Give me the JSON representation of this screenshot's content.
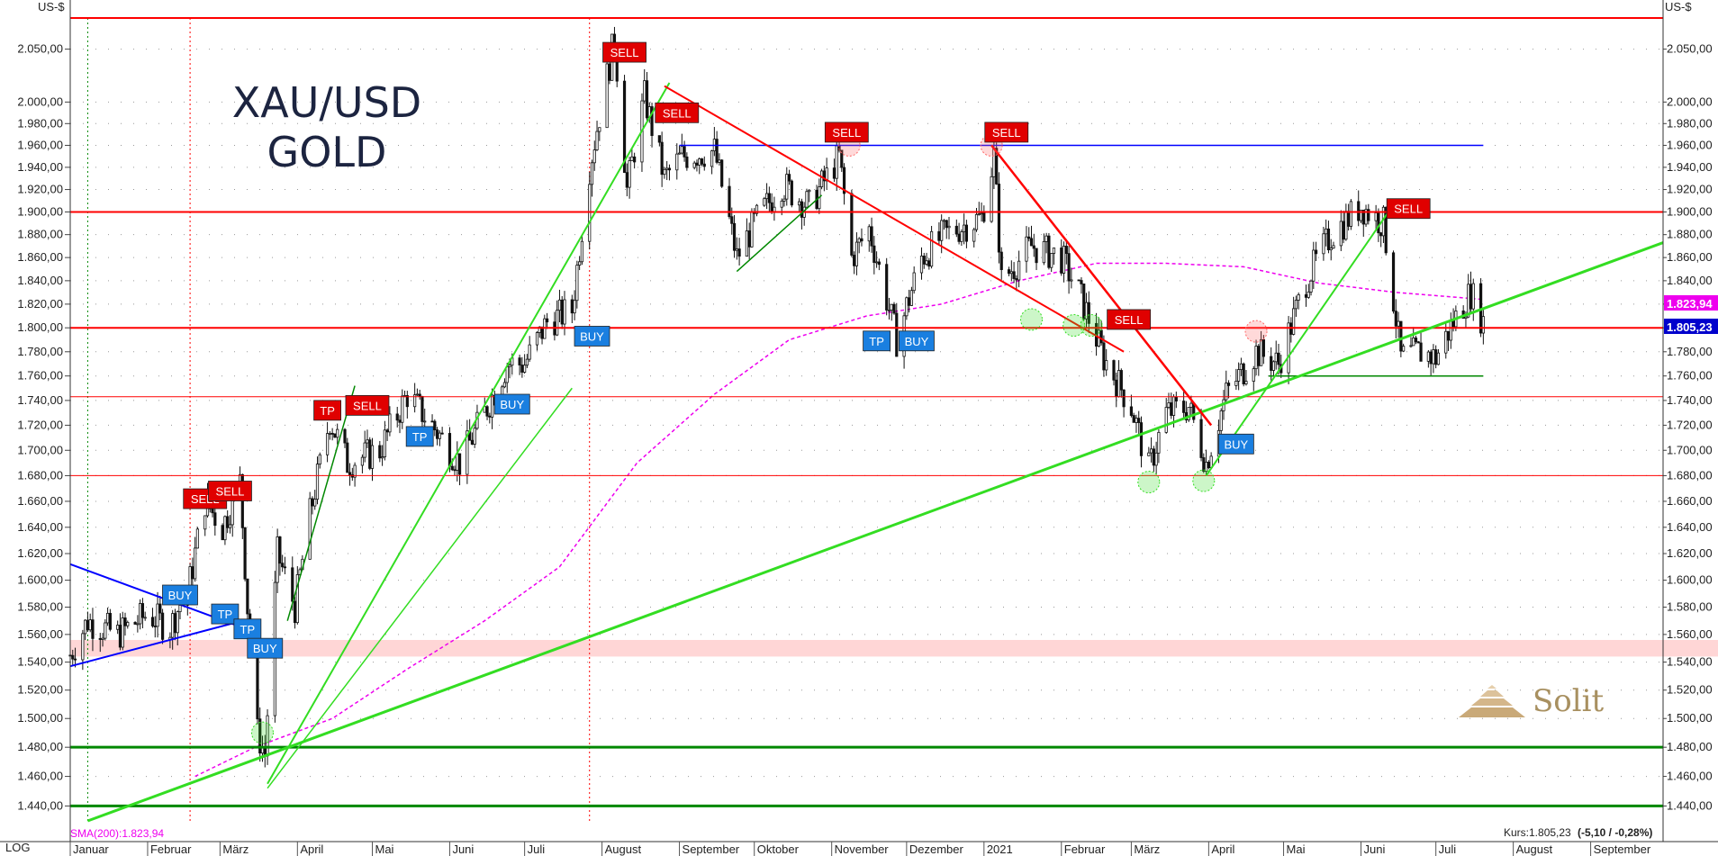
{
  "header": {
    "unit_left": "US-$",
    "unit_right": "US-$",
    "scale_mode": "LOG"
  },
  "symbol": {
    "line1": "XAU/USD",
    "line2": "GOLD"
  },
  "logo": {
    "text": "Solit"
  },
  "footer": {
    "price": "Kurs:1.805,23",
    "change": "(-5,10 / -0,28%)"
  },
  "sma_label": "SMA(200):1.823,94",
  "last_price_labels": {
    "sma": "1.823,94",
    "price": "1.805,23"
  },
  "colors": {
    "resistance": "#ff0000",
    "support": "#008800",
    "trend_up": "#33dd22",
    "trend_down": "#ff0000",
    "sma": "#ee00ee",
    "buy": "#1a7fe0",
    "sell": "#e00000",
    "blue_line": "#0000ff"
  },
  "chart_data": {
    "type": "candlestick",
    "title": "XAU/USD GOLD",
    "xlabel": "",
    "ylabel": "US-$",
    "yscale": "log",
    "ylim": [
      1430,
      2080
    ],
    "x_range": [
      "2020-01-01",
      "2021-09-30"
    ],
    "ytick_values": [
      1440,
      1460,
      1480,
      1500,
      1520,
      1540,
      1560,
      1580,
      1600,
      1620,
      1640,
      1660,
      1680,
      1700,
      1720,
      1740,
      1760,
      1780,
      1800,
      1820,
      1840,
      1860,
      1880,
      1900,
      1920,
      1940,
      1960,
      1980,
      2000,
      2050
    ],
    "ytick_labels": [
      "1.440,00",
      "1.460,00",
      "1.480,00",
      "1.500,00",
      "1.520,00",
      "1.540,00",
      "1.560,00",
      "1.580,00",
      "1.600,00",
      "1.620,00",
      "1.640,00",
      "1.660,00",
      "1.680,00",
      "1.700,00",
      "1.720,00",
      "1.740,00",
      "1.760,00",
      "1.780,00",
      "1.800,00",
      "1.820,00",
      "1.840,00",
      "1.860,00",
      "1.880,00",
      "1.900,00",
      "1.920,00",
      "1.940,00",
      "1.960,00",
      "1.980,00",
      "2.000,00",
      "2.050,00"
    ],
    "month_ticks": [
      {
        "date": "2020-01-01",
        "label": "Januar"
      },
      {
        "date": "2020-02-01",
        "label": "Februar"
      },
      {
        "date": "2020-03-01",
        "label": "März"
      },
      {
        "date": "2020-04-01",
        "label": "April"
      },
      {
        "date": "2020-05-01",
        "label": "Mai"
      },
      {
        "date": "2020-06-01",
        "label": "Juni"
      },
      {
        "date": "2020-07-01",
        "label": "Juli"
      },
      {
        "date": "2020-08-01",
        "label": "August"
      },
      {
        "date": "2020-09-01",
        "label": "September"
      },
      {
        "date": "2020-10-01",
        "label": "Oktober"
      },
      {
        "date": "2020-11-01",
        "label": "November"
      },
      {
        "date": "2020-12-01",
        "label": "Dezember"
      },
      {
        "date": "2021-01-01",
        "label": "2021"
      },
      {
        "date": "2021-02-01",
        "label": "Februar"
      },
      {
        "date": "2021-03-01",
        "label": "März"
      },
      {
        "date": "2021-04-01",
        "label": "April"
      },
      {
        "date": "2021-05-01",
        "label": "Mai"
      },
      {
        "date": "2021-06-01",
        "label": "Juni"
      },
      {
        "date": "2021-07-01",
        "label": "Juli"
      },
      {
        "date": "2021-08-01",
        "label": "August"
      },
      {
        "date": "2021-09-01",
        "label": "September"
      }
    ],
    "price_path": [
      [
        "2020-01-01",
        1545
      ],
      [
        "2020-01-08",
        1570
      ],
      [
        "2020-01-20",
        1560
      ],
      [
        "2020-02-01",
        1575
      ],
      [
        "2020-02-10",
        1565
      ],
      [
        "2020-02-18",
        1600
      ],
      [
        "2020-02-24",
        1660
      ],
      [
        "2020-03-02",
        1640
      ],
      [
        "2020-03-09",
        1675
      ],
      [
        "2020-03-12",
        1580
      ],
      [
        "2020-03-16",
        1490
      ],
      [
        "2020-03-19",
        1475
      ],
      [
        "2020-03-24",
        1620
      ],
      [
        "2020-03-31",
        1580
      ],
      [
        "2020-04-06",
        1650
      ],
      [
        "2020-04-14",
        1725
      ],
      [
        "2020-04-21",
        1690
      ],
      [
        "2020-05-04",
        1700
      ],
      [
        "2020-05-15",
        1745
      ],
      [
        "2020-05-25",
        1720
      ],
      [
        "2020-06-05",
        1690
      ],
      [
        "2020-06-15",
        1730
      ],
      [
        "2020-06-24",
        1770
      ],
      [
        "2020-07-01",
        1770
      ],
      [
        "2020-07-10",
        1805
      ],
      [
        "2020-07-20",
        1815
      ],
      [
        "2020-07-27",
        1940
      ],
      [
        "2020-08-06",
        2060
      ],
      [
        "2020-08-11",
        1920
      ],
      [
        "2020-08-18",
        2005
      ],
      [
        "2020-08-26",
        1930
      ],
      [
        "2020-09-02",
        1950
      ],
      [
        "2020-09-15",
        1955
      ],
      [
        "2020-09-24",
        1860
      ],
      [
        "2020-10-01",
        1890
      ],
      [
        "2020-10-12",
        1925
      ],
      [
        "2020-10-23",
        1905
      ],
      [
        "2020-11-04",
        1950
      ],
      [
        "2020-11-09",
        1860
      ],
      [
        "2020-11-16",
        1885
      ],
      [
        "2020-11-27",
        1790
      ],
      [
        "2020-12-07",
        1860
      ],
      [
        "2020-12-16",
        1880
      ],
      [
        "2020-12-31",
        1895
      ],
      [
        "2021-01-05",
        1950
      ],
      [
        "2021-01-08",
        1840
      ],
      [
        "2021-01-20",
        1870
      ],
      [
        "2021-02-01",
        1860
      ],
      [
        "2021-02-08",
        1830
      ],
      [
        "2021-02-18",
        1775
      ],
      [
        "2021-03-01",
        1735
      ],
      [
        "2021-03-08",
        1685
      ],
      [
        "2021-03-15",
        1730
      ],
      [
        "2021-03-24",
        1735
      ],
      [
        "2021-03-31",
        1690
      ],
      [
        "2021-04-08",
        1745
      ],
      [
        "2021-04-20",
        1780
      ],
      [
        "2021-04-29",
        1770
      ],
      [
        "2021-05-10",
        1840
      ],
      [
        "2021-05-20",
        1880
      ],
      [
        "2021-06-01",
        1905
      ],
      [
        "2021-06-10",
        1890
      ],
      [
        "2021-06-17",
        1775
      ],
      [
        "2021-06-25",
        1780
      ],
      [
        "2021-07-01",
        1775
      ],
      [
        "2021-07-08",
        1805
      ],
      [
        "2021-07-15",
        1830
      ],
      [
        "2021-07-20",
        1805
      ]
    ],
    "sma200": [
      [
        "2020-02-20",
        1460
      ],
      [
        "2020-03-15",
        1480
      ],
      [
        "2020-04-15",
        1500
      ],
      [
        "2020-05-15",
        1535
      ],
      [
        "2020-06-15",
        1570
      ],
      [
        "2020-07-15",
        1610
      ],
      [
        "2020-08-15",
        1690
      ],
      [
        "2020-09-15",
        1745
      ],
      [
        "2020-10-15",
        1790
      ],
      [
        "2020-11-15",
        1810
      ],
      [
        "2020-12-15",
        1820
      ],
      [
        "2021-01-15",
        1840
      ],
      [
        "2021-02-15",
        1855
      ],
      [
        "2021-03-15",
        1855
      ],
      [
        "2021-04-15",
        1852
      ],
      [
        "2021-05-15",
        1838
      ],
      [
        "2021-06-15",
        1830
      ],
      [
        "2021-07-20",
        1824
      ]
    ],
    "horizontal_lines": [
      {
        "price": 2080,
        "color": "#ff0000",
        "width": 2
      },
      {
        "price": 1900,
        "color": "#ff0000",
        "width": 2
      },
      {
        "price": 1800,
        "color": "#ff0000",
        "width": 2
      },
      {
        "price": 1743,
        "color": "#ff0000",
        "width": 1
      },
      {
        "price": 1680,
        "color": "#ff0000",
        "width": 1
      },
      {
        "price": 1480,
        "color": "#008800",
        "width": 3
      },
      {
        "price": 1440,
        "color": "#008800",
        "width": 3
      }
    ],
    "segments": [
      {
        "from": [
          "2020-01-01",
          1612
        ],
        "to": [
          "2020-03-10",
          1565
        ],
        "color": "#0000ff",
        "width": 2
      },
      {
        "from": [
          "2020-01-01",
          1537
        ],
        "to": [
          "2020-03-10",
          1570
        ],
        "color": "#0000ff",
        "width": 2
      },
      {
        "from": [
          "2020-09-01",
          1960
        ],
        "to": [
          "2021-07-20",
          1960
        ],
        "color": "#0000ff",
        "width": 1.5
      },
      {
        "from": [
          "2021-04-25",
          1760
        ],
        "to": [
          "2021-07-20",
          1760
        ],
        "color": "#008800",
        "width": 1.5
      },
      {
        "from": [
          "2020-03-20",
          1455
        ],
        "to": [
          "2020-08-28",
          2018
        ],
        "color": "#33dd22",
        "width": 2
      },
      {
        "from": [
          "2020-03-20",
          1452
        ],
        "to": [
          "2020-07-20",
          1750
        ],
        "color": "#33dd22",
        "width": 1.5
      },
      {
        "from": [
          "2020-03-28",
          1570
        ],
        "to": [
          "2020-04-24",
          1752
        ],
        "color": "#008800",
        "width": 1.5
      },
      {
        "from": [
          "2020-01-08",
          1430
        ],
        "to": [
          "2021-09-30",
          1873
        ],
        "color": "#33dd22",
        "width": 3
      },
      {
        "from": [
          "2020-09-24",
          1848
        ],
        "to": [
          "2020-10-28",
          1915
        ],
        "color": "#008800",
        "width": 1.5
      },
      {
        "from": [
          "2021-03-31",
          1680
        ],
        "to": [
          "2021-06-12",
          1900
        ],
        "color": "#33dd22",
        "width": 2
      },
      {
        "from": [
          "2020-08-26",
          2015
        ],
        "to": [
          "2021-02-26",
          1780
        ],
        "color": "#ff0000",
        "width": 2
      },
      {
        "from": [
          "2021-01-04",
          1960
        ],
        "to": [
          "2021-04-02",
          1720
        ],
        "color": "#ff0000",
        "width": 2.5
      }
    ],
    "circles": [
      {
        "date": "2020-03-18",
        "price": 1490,
        "color": "#33dd22"
      },
      {
        "date": "2020-11-08",
        "price": 1960,
        "color": "#ff6666"
      },
      {
        "date": "2021-01-04",
        "price": 1960,
        "color": "#ff6666"
      },
      {
        "date": "2021-01-20",
        "price": 1807,
        "color": "#33dd22"
      },
      {
        "date": "2021-02-06",
        "price": 1802,
        "color": "#33dd22"
      },
      {
        "date": "2021-02-13",
        "price": 1802,
        "color": "#33dd22"
      },
      {
        "date": "2021-03-08",
        "price": 1675,
        "color": "#33dd22"
      },
      {
        "date": "2021-03-30",
        "price": 1676,
        "color": "#33dd22"
      },
      {
        "date": "2021-04-20",
        "price": 1797,
        "color": "#ff6666"
      }
    ],
    "signals": [
      {
        "label": "SELL",
        "date": "2020-02-24",
        "price": 1662,
        "type": "sell"
      },
      {
        "label": "SELL",
        "date": "2020-03-05",
        "price": 1668,
        "type": "sell"
      },
      {
        "label": "BUY",
        "date": "2020-02-14",
        "price": 1589,
        "type": "buy"
      },
      {
        "label": "TP",
        "date": "2020-03-03",
        "price": 1575,
        "type": "buy"
      },
      {
        "label": "TP",
        "date": "2020-03-12",
        "price": 1564,
        "type": "buy"
      },
      {
        "label": "BUY",
        "date": "2020-03-19",
        "price": 1550,
        "type": "buy"
      },
      {
        "label": "TP",
        "date": "2020-04-13",
        "price": 1732,
        "type": "sell"
      },
      {
        "label": "SELL",
        "date": "2020-04-29",
        "price": 1736,
        "type": "sell"
      },
      {
        "label": "TP",
        "date": "2020-05-20",
        "price": 1711,
        "type": "buy"
      },
      {
        "label": "BUY",
        "date": "2020-06-26",
        "price": 1737,
        "type": "buy"
      },
      {
        "label": "BUY",
        "date": "2020-07-28",
        "price": 1793,
        "type": "buy"
      },
      {
        "label": "SELL",
        "date": "2020-08-10",
        "price": 2047,
        "type": "sell"
      },
      {
        "label": "SELL",
        "date": "2020-08-31",
        "price": 1990,
        "type": "sell"
      },
      {
        "label": "SELL",
        "date": "2020-11-07",
        "price": 1972,
        "type": "sell"
      },
      {
        "label": "TP",
        "date": "2020-11-19",
        "price": 1789,
        "type": "buy"
      },
      {
        "label": "BUY",
        "date": "2020-12-05",
        "price": 1789,
        "type": "buy"
      },
      {
        "label": "SELL",
        "date": "2021-01-10",
        "price": 1972,
        "type": "sell"
      },
      {
        "label": "SELL",
        "date": "2021-02-28",
        "price": 1807,
        "type": "sell"
      },
      {
        "label": "BUY",
        "date": "2021-04-12",
        "price": 1705,
        "type": "buy"
      },
      {
        "label": "SELL",
        "date": "2021-06-20",
        "price": 1903,
        "type": "sell"
      }
    ]
  }
}
